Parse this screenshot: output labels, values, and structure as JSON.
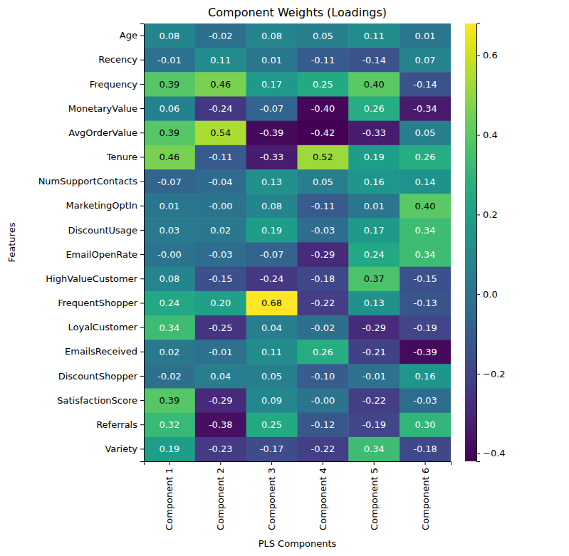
{
  "chart_data": {
    "type": "heatmap",
    "title": "Component Weights (Loadings)",
    "xlabel": "PLS Components",
    "ylabel": "Features",
    "columns": [
      "Component 1",
      "Component 2",
      "Component 3",
      "Component 4",
      "Component 5",
      "Component 6"
    ],
    "rows": [
      "Age",
      "Recency",
      "Frequency",
      "MonetaryValue",
      "AvgOrderValue",
      "Tenure",
      "NumSupportContacts",
      "MarketingOptIn",
      "DiscountUsage",
      "EmailOpenRate",
      "HighValueCustomer",
      "FrequentShopper",
      "LoyalCustomer",
      "EmailsReceived",
      "DiscountShopper",
      "SatisfactionScore",
      "Referrals",
      "Variety"
    ],
    "values": [
      [
        0.08,
        -0.02,
        0.08,
        0.05,
        0.11,
        0.01
      ],
      [
        -0.01,
        0.11,
        0.01,
        -0.11,
        -0.14,
        0.07
      ],
      [
        0.39,
        0.46,
        0.17,
        0.25,
        0.4,
        -0.14
      ],
      [
        0.06,
        -0.24,
        -0.07,
        -0.4,
        0.26,
        -0.34
      ],
      [
        0.39,
        0.54,
        -0.39,
        -0.42,
        -0.33,
        0.05
      ],
      [
        0.46,
        -0.11,
        -0.33,
        0.52,
        0.19,
        0.26
      ],
      [
        -0.07,
        -0.04,
        0.13,
        0.05,
        0.16,
        0.14
      ],
      [
        0.01,
        -0.0,
        0.08,
        -0.11,
        0.01,
        0.4
      ],
      [
        0.03,
        0.02,
        0.19,
        -0.03,
        0.17,
        0.34
      ],
      [
        -0.0,
        -0.03,
        -0.07,
        -0.29,
        0.24,
        0.34
      ],
      [
        0.08,
        -0.15,
        -0.24,
        -0.18,
        0.37,
        -0.15
      ],
      [
        0.24,
        0.2,
        0.68,
        -0.22,
        0.13,
        -0.13
      ],
      [
        0.34,
        -0.25,
        0.04,
        -0.02,
        -0.29,
        -0.19
      ],
      [
        0.02,
        -0.01,
        0.11,
        0.26,
        -0.21,
        -0.39
      ],
      [
        -0.02,
        0.04,
        0.05,
        -0.1,
        -0.01,
        0.16
      ],
      [
        0.39,
        -0.29,
        0.09,
        -0.0,
        -0.22,
        -0.03
      ],
      [
        0.32,
        -0.38,
        0.25,
        -0.12,
        -0.19,
        0.3
      ],
      [
        0.19,
        -0.23,
        -0.17,
        -0.22,
        0.34,
        -0.18
      ]
    ],
    "value_labels": [
      [
        "0.08",
        "-0.02",
        "0.08",
        "0.05",
        "0.11",
        "0.01"
      ],
      [
        "-0.01",
        "0.11",
        "0.01",
        "-0.11",
        "-0.14",
        "0.07"
      ],
      [
        "0.39",
        "0.46",
        "0.17",
        "0.25",
        "0.40",
        "-0.14"
      ],
      [
        "0.06",
        "-0.24",
        "-0.07",
        "-0.40",
        "0.26",
        "-0.34"
      ],
      [
        "0.39",
        "0.54",
        "-0.39",
        "-0.42",
        "-0.33",
        "0.05"
      ],
      [
        "0.46",
        "-0.11",
        "-0.33",
        "0.52",
        "0.19",
        "0.26"
      ],
      [
        "-0.07",
        "-0.04",
        "0.13",
        "0.05",
        "0.16",
        "0.14"
      ],
      [
        "0.01",
        "-0.00",
        "0.08",
        "-0.11",
        "0.01",
        "0.40"
      ],
      [
        "0.03",
        "0.02",
        "0.19",
        "-0.03",
        "0.17",
        "0.34"
      ],
      [
        "-0.00",
        "-0.03",
        "-0.07",
        "-0.29",
        "0.24",
        "0.34"
      ],
      [
        "0.08",
        "-0.15",
        "-0.24",
        "-0.18",
        "0.37",
        "-0.15"
      ],
      [
        "0.24",
        "0.20",
        "0.68",
        "-0.22",
        "0.13",
        "-0.13"
      ],
      [
        "0.34",
        "-0.25",
        "0.04",
        "-0.02",
        "-0.29",
        "-0.19"
      ],
      [
        "0.02",
        "-0.01",
        "0.11",
        "0.26",
        "-0.21",
        "-0.39"
      ],
      [
        "-0.02",
        "0.04",
        "0.05",
        "-0.10",
        "-0.01",
        "0.16"
      ],
      [
        "0.39",
        "-0.29",
        "0.09",
        "-0.00",
        "-0.22",
        "-0.03"
      ],
      [
        "0.32",
        "-0.38",
        "0.25",
        "-0.12",
        "-0.19",
        "0.30"
      ],
      [
        "0.19",
        "-0.23",
        "-0.17",
        "-0.22",
        "0.34",
        "-0.18"
      ]
    ],
    "data_labels": true,
    "color": "viridis",
    "colorbar": {
      "range": [
        -0.42,
        0.68
      ],
      "ticks": [
        {
          "value": -0.4,
          "label": "−0.4"
        },
        {
          "value": -0.2,
          "label": "−0.2"
        },
        {
          "value": 0.0,
          "label": "0.0"
        },
        {
          "value": 0.2,
          "label": "0.2"
        },
        {
          "value": 0.4,
          "label": "0.4"
        },
        {
          "value": 0.6,
          "label": "0.6"
        }
      ]
    }
  }
}
